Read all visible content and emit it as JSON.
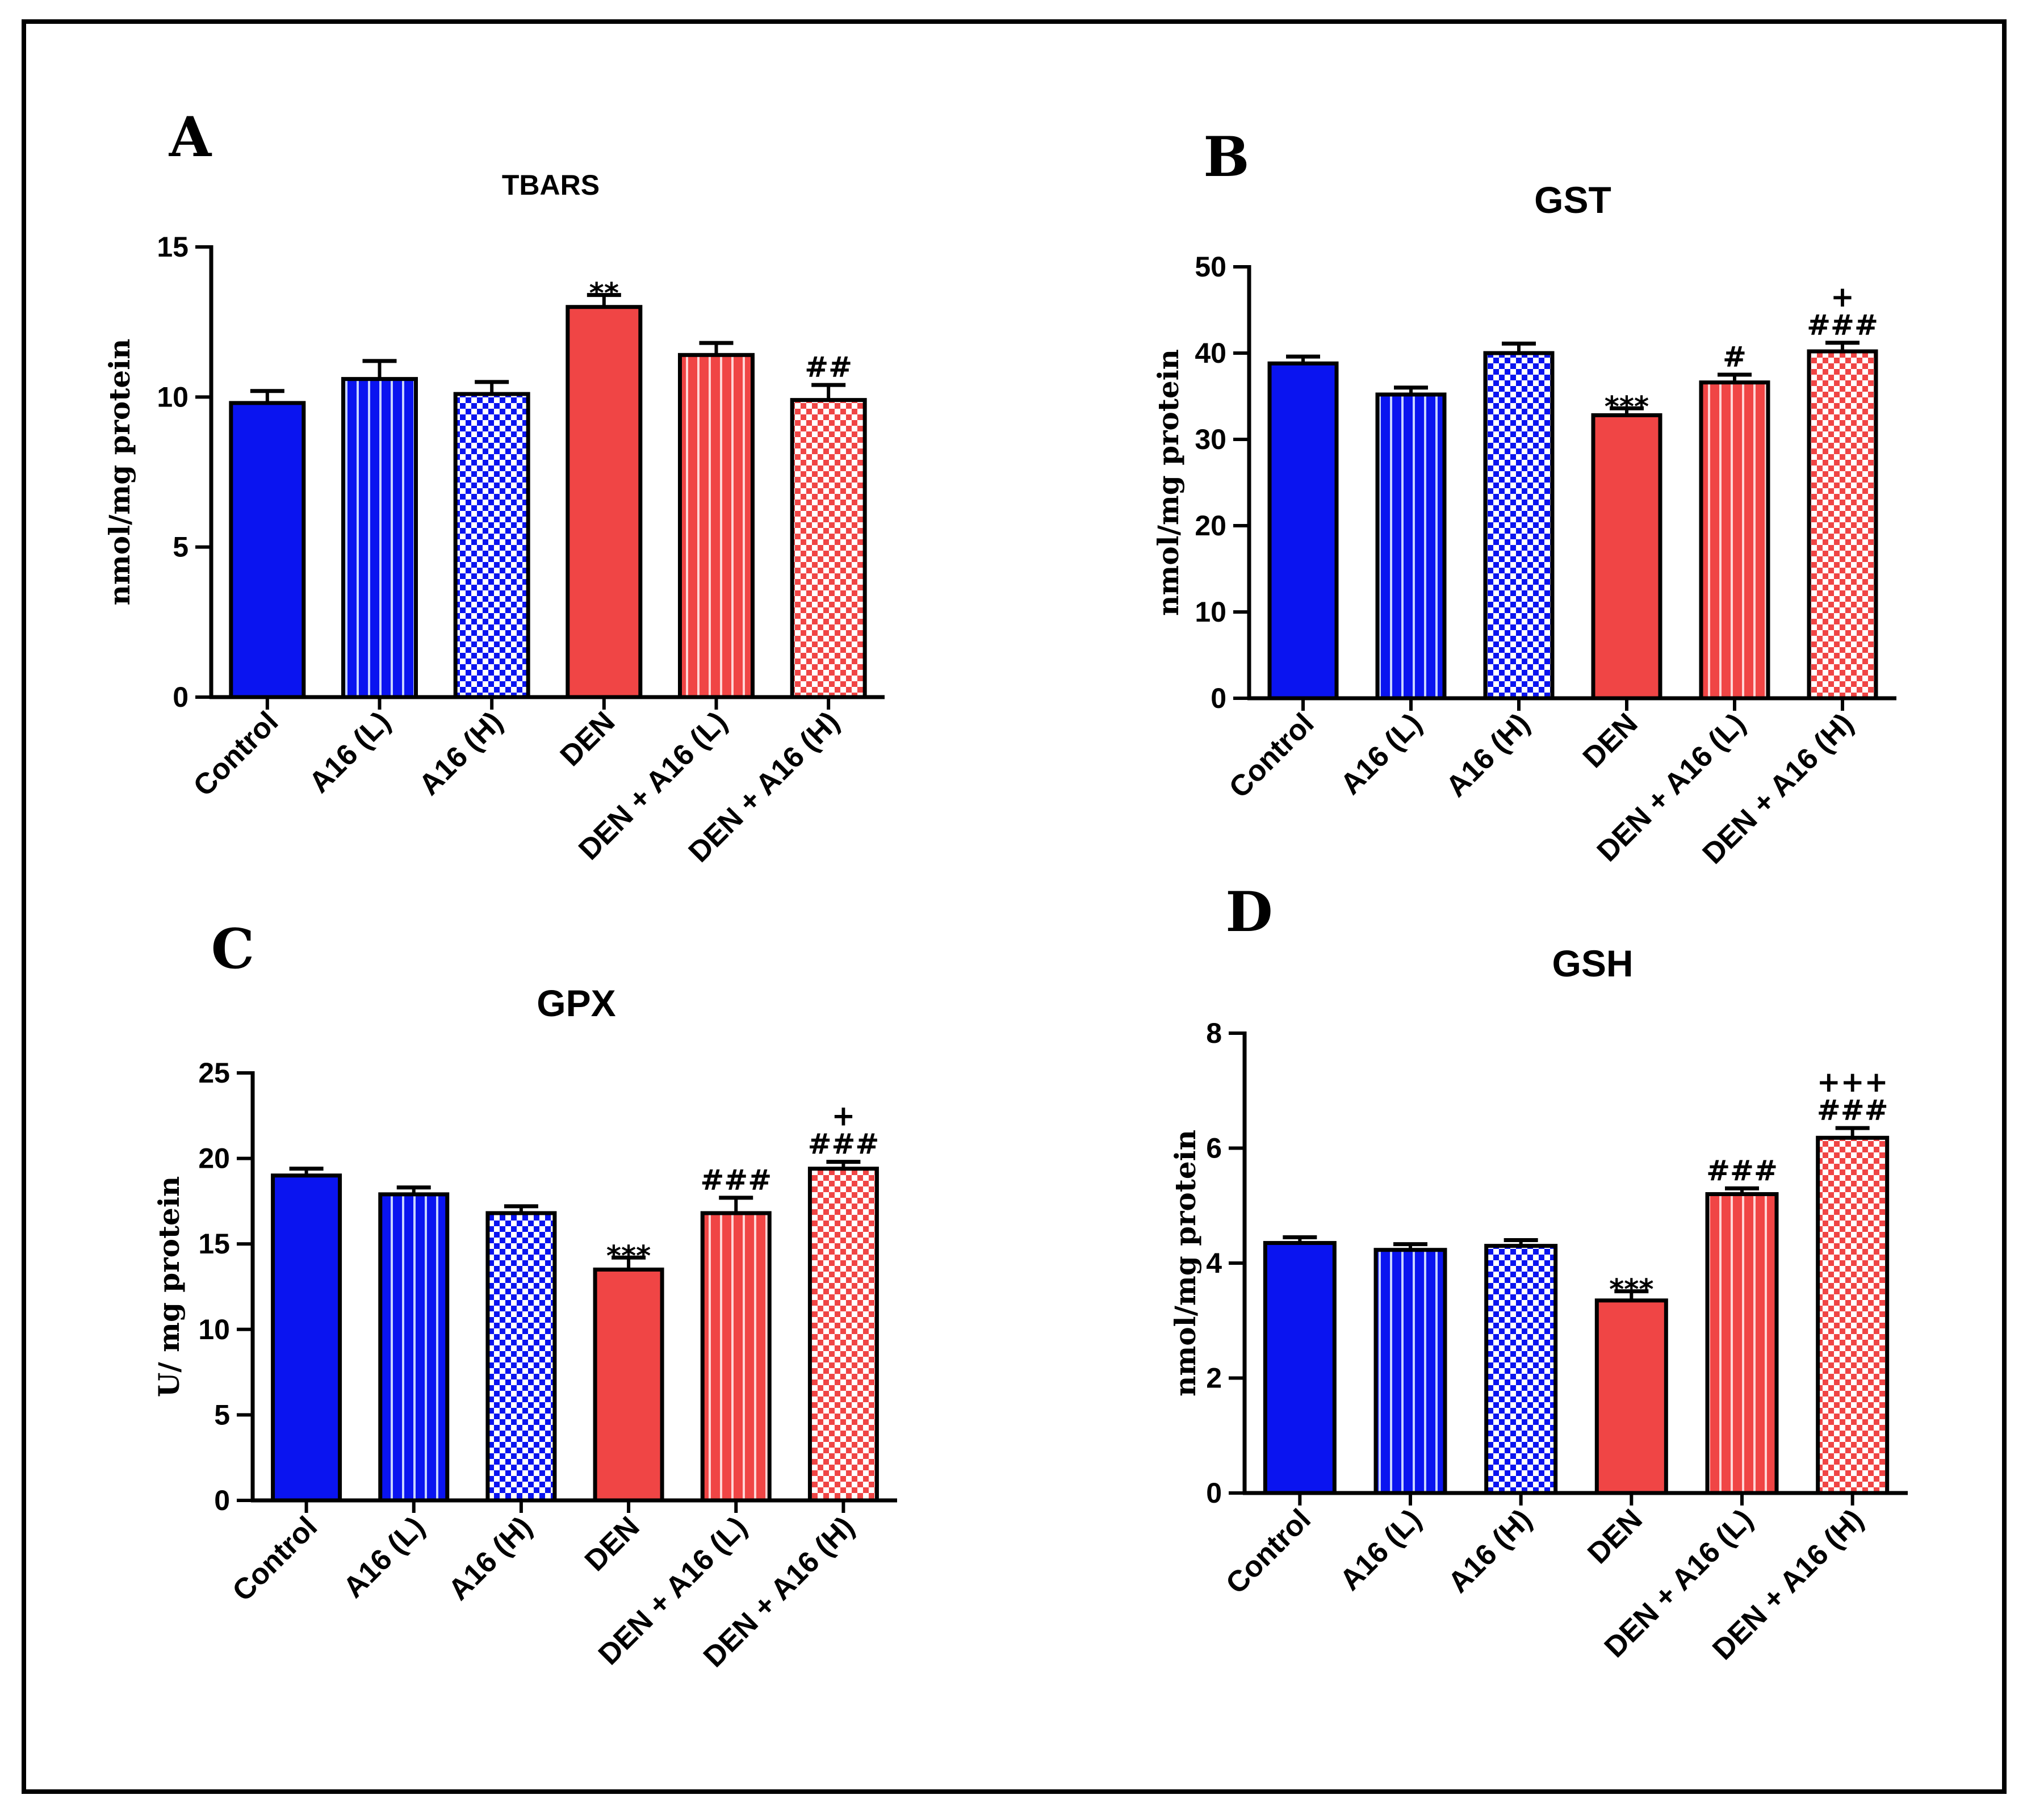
{
  "colors": {
    "blue": "#0a14f0",
    "blue_light": "#c8d4ff",
    "red": "#f04545",
    "red_light": "#ffd6d6",
    "outline": "#000000"
  },
  "chart_data": [
    {
      "type": "bar",
      "panel_label": "A",
      "title": "TBARS",
      "ylabel": "nmol/mg protein",
      "xlabel": "",
      "ylim": [
        0,
        15
      ],
      "yticks": [
        0,
        5,
        10,
        15
      ],
      "categories": [
        "Control",
        "A16 (L)",
        "A16 (H)",
        "DEN",
        "DEN + A16 (L)",
        "DEN + A16 (H)"
      ],
      "values": [
        9.8,
        10.6,
        10.1,
        13.0,
        11.4,
        9.9
      ],
      "errors": [
        0.4,
        0.6,
        0.4,
        0.4,
        0.4,
        0.5
      ],
      "patterns": [
        "solid",
        "stripes",
        "checker",
        "solid",
        "stripes",
        "checker"
      ],
      "colors": [
        "blue",
        "blue",
        "blue",
        "red",
        "red",
        "red"
      ],
      "significance": [
        "",
        "",
        "",
        "**",
        "",
        "##"
      ]
    },
    {
      "type": "bar",
      "panel_label": "B",
      "title": "GST",
      "ylabel": "nmol/mg protein",
      "xlabel": "",
      "ylim": [
        0,
        50
      ],
      "yticks": [
        0,
        10,
        20,
        30,
        40,
        50
      ],
      "categories": [
        "Control",
        "A16 (L)",
        "A16 (H)",
        "DEN",
        "DEN + A16 (L)",
        "DEN + A16 (H)"
      ],
      "values": [
        38.8,
        35.2,
        40.0,
        32.8,
        36.6,
        40.2
      ],
      "errors": [
        0.8,
        0.8,
        1.1,
        0.8,
        0.9,
        1.0
      ],
      "patterns": [
        "solid",
        "stripes",
        "checker",
        "solid",
        "stripes",
        "checker"
      ],
      "colors": [
        "blue",
        "blue",
        "blue",
        "red",
        "red",
        "red"
      ],
      "significance": [
        "",
        "",
        "",
        "***",
        "#",
        "+\n###"
      ]
    },
    {
      "type": "bar",
      "panel_label": "C",
      "title": "GPX",
      "ylabel": "U/ mg protein",
      "xlabel": "",
      "ylim": [
        0,
        25
      ],
      "yticks": [
        0,
        5,
        10,
        15,
        20,
        25
      ],
      "categories": [
        "Control",
        "A16 (L)",
        "A16 (H)",
        "DEN",
        "DEN + A16 (L)",
        "DEN + A16 (H)"
      ],
      "values": [
        19.0,
        17.9,
        16.8,
        13.5,
        16.8,
        19.4
      ],
      "errors": [
        0.4,
        0.4,
        0.4,
        0.7,
        0.9,
        0.4
      ],
      "patterns": [
        "solid",
        "stripes",
        "checker",
        "solid",
        "stripes",
        "checker"
      ],
      "colors": [
        "blue",
        "blue",
        "blue",
        "red",
        "red",
        "red"
      ],
      "significance": [
        "",
        "",
        "",
        "***",
        "###",
        "+\n###"
      ]
    },
    {
      "type": "bar",
      "panel_label": "D",
      "title": "GSH",
      "ylabel": "nmol/mg protein",
      "xlabel": "",
      "ylim": [
        0,
        8
      ],
      "yticks": [
        0,
        2,
        4,
        6,
        8
      ],
      "categories": [
        "Control",
        "A16 (L)",
        "A16 (H)",
        "DEN",
        "DEN + A16 (L)",
        "DEN + A16 (H)"
      ],
      "values": [
        4.35,
        4.23,
        4.3,
        3.35,
        5.2,
        6.18
      ],
      "errors": [
        0.1,
        0.1,
        0.1,
        0.16,
        0.1,
        0.17
      ],
      "patterns": [
        "solid",
        "stripes",
        "checker",
        "solid",
        "stripes",
        "checker"
      ],
      "colors": [
        "blue",
        "blue",
        "blue",
        "red",
        "red",
        "red"
      ],
      "significance": [
        "",
        "",
        "",
        "***",
        "###",
        "+++\n###"
      ]
    }
  ]
}
